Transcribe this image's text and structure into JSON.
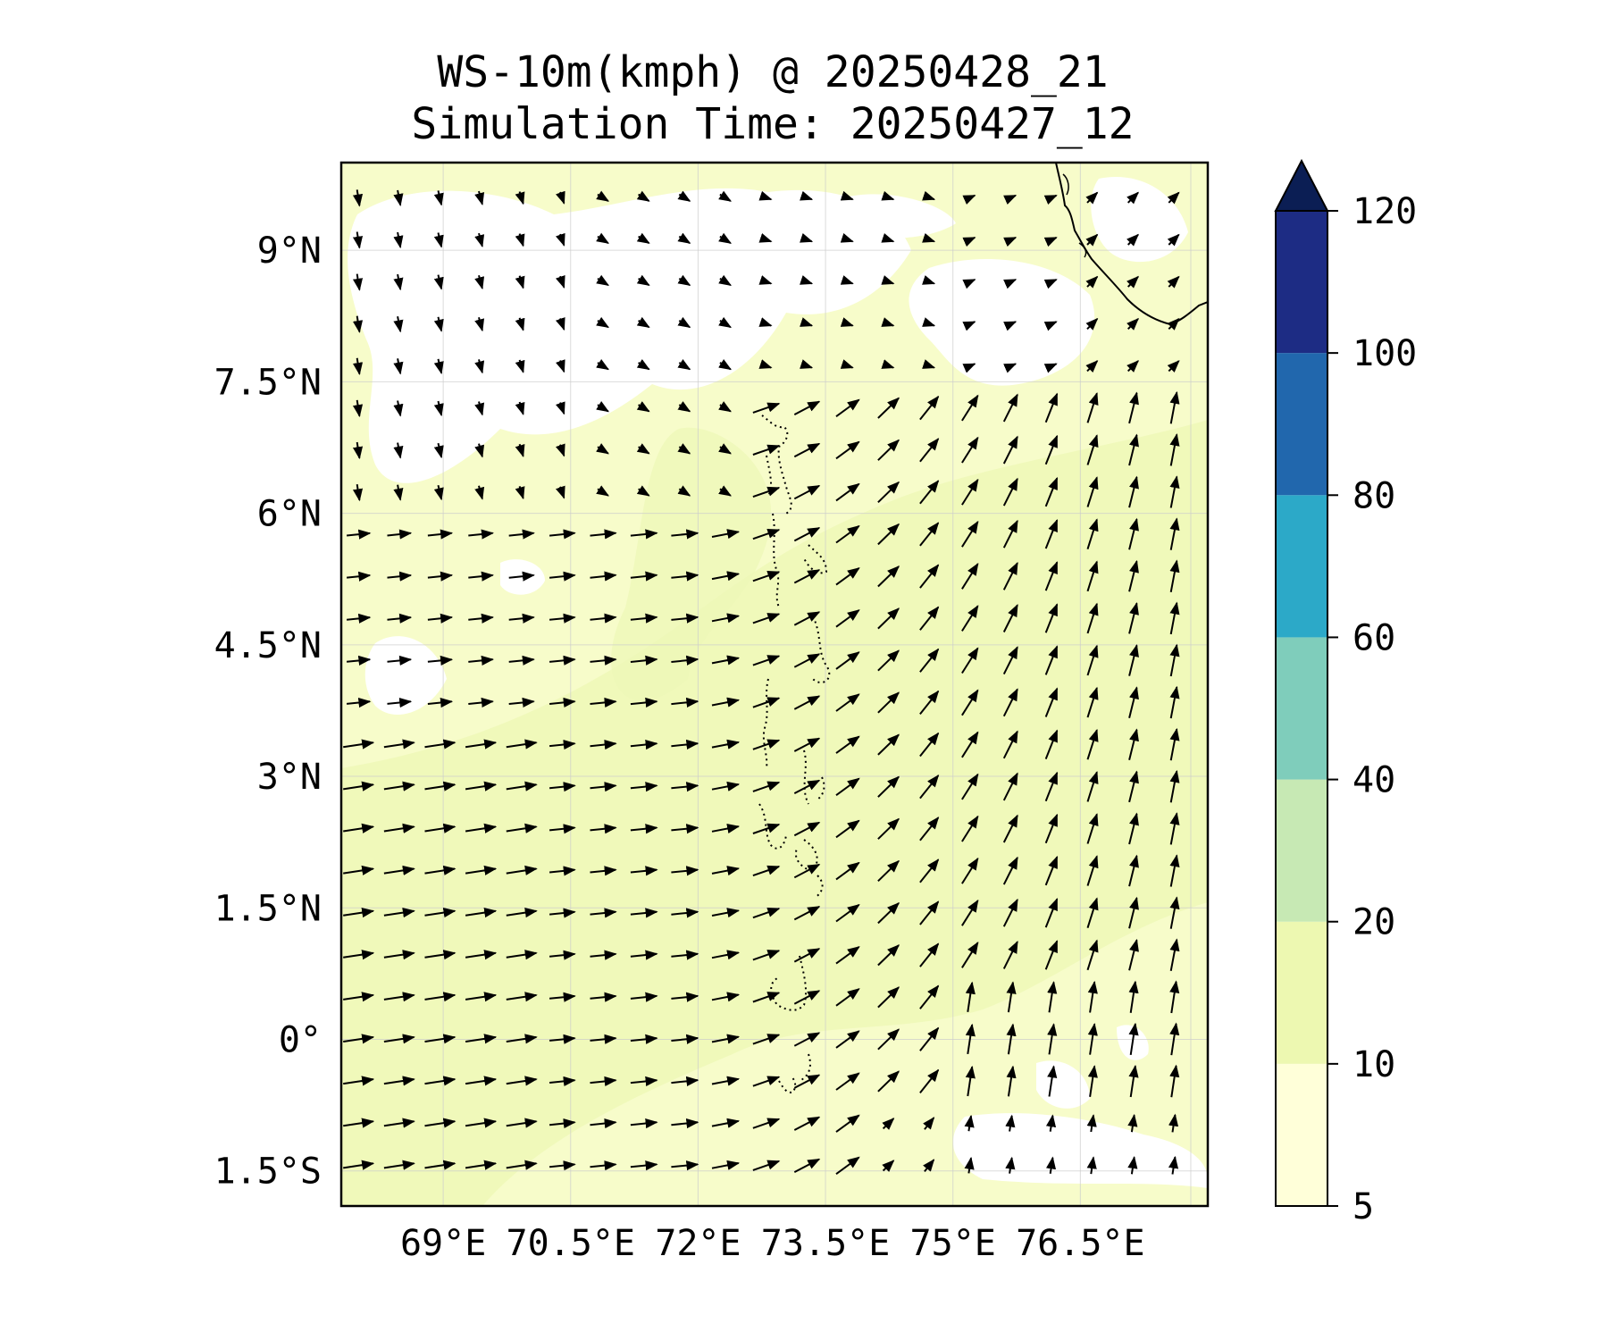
{
  "title": {
    "line1": "WS-10m(kmph) @ 20250428_21",
    "line2": "Simulation Time: 20250427_12"
  },
  "map": {
    "lon_range": [
      67.8,
      78.0
    ],
    "lat_range": [
      -1.9,
      10.0
    ],
    "lat_labels": [
      {
        "value": 9,
        "text": "9°N"
      },
      {
        "value": 7.5,
        "text": "7.5°N"
      },
      {
        "value": 6,
        "text": "6°N"
      },
      {
        "value": 4.5,
        "text": "4.5°N"
      },
      {
        "value": 3,
        "text": "3°N"
      },
      {
        "value": 1.5,
        "text": "1.5°N"
      },
      {
        "value": 0,
        "text": "0°"
      },
      {
        "value": -1.5,
        "text": "1.5°S"
      }
    ],
    "lon_labels": [
      {
        "value": 69,
        "text": "69°E"
      },
      {
        "value": 70.5,
        "text": "70.5°E"
      },
      {
        "value": 72,
        "text": "72°E"
      },
      {
        "value": 73.5,
        "text": "73.5°E"
      },
      {
        "value": 75,
        "text": "75°E"
      },
      {
        "value": 76.5,
        "text": "76.5°E"
      }
    ],
    "background_color": "#f7fcca",
    "calm_color": "#ffffff",
    "stronger_color": "#edf8b1"
  },
  "colorbar": {
    "levels": [
      5,
      10,
      20,
      40,
      60,
      80,
      100,
      120
    ],
    "labels": [
      "5",
      "10",
      "20",
      "40",
      "60",
      "80",
      "100",
      "120"
    ],
    "colors": [
      "#ffffd9",
      "#edf8b1",
      "#c7e9b4",
      "#7fcdbb",
      "#2ca9c8",
      "#2167ad",
      "#1d2c84"
    ],
    "extend_color": "#0b1e54"
  }
}
